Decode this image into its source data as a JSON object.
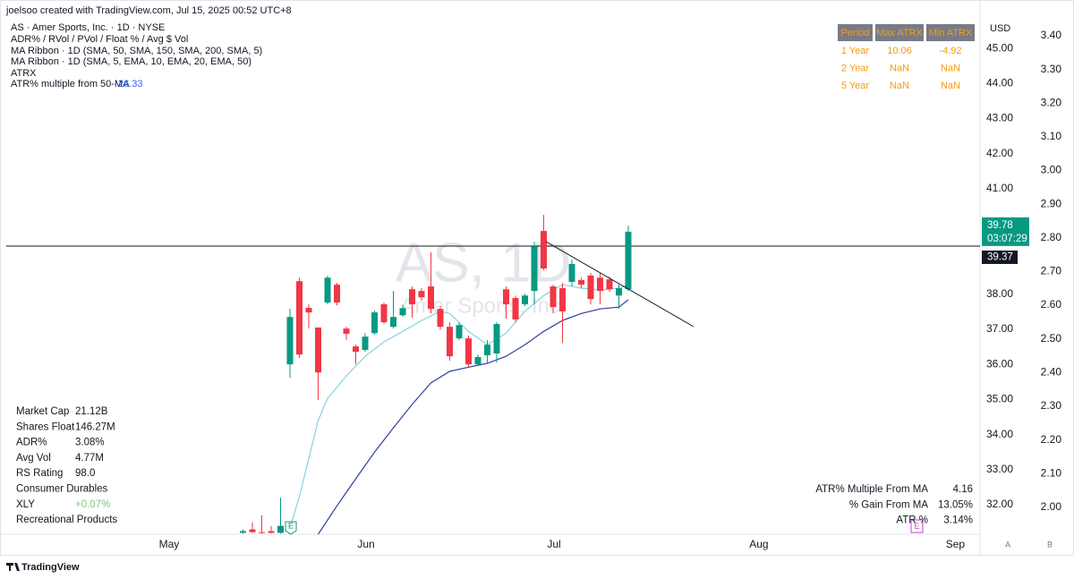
{
  "header": {
    "author": "joelsoo created with TradingView.com, Jul 15, 2025 00:52 UTC+8",
    "lines": [
      "AS · Amer Sports, Inc. · 1D · NYSE",
      "ADR% / RVol / PVol / Float % / Avg $ Vol",
      "MA Ribbon · 1D (SMA, 50, SMA, 150, SMA, 200, SMA, 5)",
      "MA Ribbon · 1D (SMA, 5, EMA, 10, EMA, 20, EMA, 50)",
      "ATRX"
    ],
    "atr_label": "ATR% multiple from 50-MA",
    "atr_value": "26.33"
  },
  "watermark": {
    "symbol": "AS, 1D",
    "name": "Amer Sports, Inc."
  },
  "info_table": {
    "columns": [
      "Period",
      "Max ATRX",
      "Min ATRX"
    ],
    "rows": [
      [
        "1 Year",
        "10.06",
        "-4.92"
      ],
      [
        "2 Year",
        "NaN",
        "NaN"
      ],
      [
        "5 Year",
        "NaN",
        "NaN"
      ]
    ]
  },
  "stats_left": [
    [
      "Market Cap",
      "21.12B"
    ],
    [
      "Shares Float",
      "146.27M"
    ],
    [
      "ADR%",
      "3.08%"
    ],
    [
      "Avg Vol",
      "4.77M"
    ],
    [
      "RS Rating",
      "98.0"
    ],
    [
      "Consumer Durables"
    ],
    [
      "XLY",
      "+0.07%"
    ],
    [
      "Recreational Products"
    ]
  ],
  "stats_right": [
    [
      "ATR% Multiple From MA",
      "4.16"
    ],
    [
      "% Gain From MA",
      "13.05%"
    ],
    [
      "ATR %",
      "3.14%"
    ]
  ],
  "badges": {
    "earnings": "E",
    "event": "E",
    "axis_a": "A",
    "axis_b": "B"
  },
  "footer": "TradingView",
  "chart_data": {
    "type": "candlestick",
    "currency": "USD",
    "x": [
      0,
      1,
      2,
      3,
      4,
      5,
      6,
      7,
      8,
      9,
      10,
      11,
      12,
      13,
      14,
      15,
      16,
      17,
      18,
      19,
      20,
      21,
      22,
      23,
      24,
      25,
      26,
      27,
      28,
      29,
      30,
      31,
      32,
      33,
      34,
      35,
      36,
      37,
      38,
      39,
      40,
      41
    ],
    "open": [
      31.2,
      31.3,
      31.22,
      31.25,
      31.2,
      36.0,
      38.37,
      37.61,
      37.05,
      37.76,
      38.27,
      37.02,
      36.51,
      36.41,
      36.89,
      37.71,
      37.07,
      37.4,
      38.14,
      38.09,
      38.22,
      37.58,
      37.07,
      36.74,
      36.74,
      36.0,
      36.26,
      36.31,
      38.14,
      37.89,
      37.71,
      38.09,
      39.8,
      38.22,
      38.17,
      38.35,
      38.4,
      38.53,
      38.47,
      38.42,
      37.96,
      38.14
    ],
    "high": [
      31.3,
      31.5,
      31.7,
      31.4,
      32.2,
      37.58,
      38.47,
      37.71,
      37.05,
      38.53,
      38.32,
      37.07,
      36.56,
      36.89,
      37.53,
      37.76,
      38.09,
      37.7,
      38.22,
      38.17,
      39.19,
      37.66,
      37.2,
      37.2,
      36.82,
      36.28,
      36.69,
      37.2,
      38.22,
      37.96,
      38.01,
      39.49,
      40.26,
      38.27,
      38.32,
      38.98,
      38.47,
      38.6,
      38.6,
      38.5,
      38.27,
      39.95
    ],
    "low": [
      31.18,
      31.2,
      31.18,
      31.18,
      31.18,
      35.62,
      36.18,
      37.02,
      34.98,
      37.71,
      37.68,
      36.69,
      36.0,
      36.36,
      36.84,
      37.15,
      37.02,
      37.35,
      37.33,
      37.81,
      37.45,
      36.99,
      36.1,
      36.69,
      35.92,
      35.95,
      36.05,
      36.05,
      37.3,
      37.2,
      37.66,
      37.71,
      38.68,
      37.45,
      36.61,
      38.22,
      38.17,
      37.71,
      37.71,
      38.06,
      37.58,
      38.09
    ],
    "close": [
      31.25,
      31.22,
      31.2,
      31.2,
      31.4,
      37.35,
      36.28,
      37.48,
      35.77,
      38.47,
      37.76,
      36.87,
      36.36,
      36.79,
      37.48,
      37.2,
      37.35,
      37.6,
      37.71,
      37.91,
      37.58,
      37.07,
      36.23,
      37.12,
      36.0,
      36.21,
      36.56,
      37.15,
      37.71,
      37.28,
      37.96,
      39.36,
      38.73,
      37.63,
      37.51,
      38.86,
      38.27,
      37.86,
      38.09,
      38.14,
      38.17,
      39.78
    ],
    "up_color": "#089981",
    "down_color": "#f23645",
    "lines": [
      {
        "color": "#86d3e0",
        "x": [
          5,
          6,
          8,
          9,
          11,
          13,
          15,
          17,
          19,
          21,
          22,
          24,
          26,
          28,
          30,
          32,
          34,
          36,
          38,
          40,
          41
        ],
        "values": [
          31.34,
          32.23,
          34.4,
          35.03,
          35.67,
          36.23,
          36.64,
          36.94,
          37.25,
          37.51,
          37.45,
          36.94,
          36.56,
          36.89,
          37.51,
          37.96,
          38.27,
          38.17,
          38.12,
          38.17,
          38.27
        ]
      },
      {
        "color": "#2e40a0",
        "x": [
          8,
          10,
          12,
          14,
          16,
          18,
          20,
          22,
          24,
          26,
          28,
          30,
          32,
          34,
          36,
          38,
          40,
          41
        ],
        "values": [
          31.16,
          31.97,
          32.74,
          33.5,
          34.19,
          34.86,
          35.47,
          35.8,
          35.92,
          36.03,
          36.23,
          36.56,
          36.94,
          37.25,
          37.45,
          37.58,
          37.63,
          37.84
        ]
      }
    ],
    "last_price": {
      "value": 39.78,
      "label": "39.78",
      "countdown": "03:07:29"
    },
    "price_line": {
      "value": 39.37,
      "label": "39.37"
    },
    "xlim": [
      -25.19,
      78.43
    ],
    "xticks": [
      {
        "value": -7.86,
        "label": "May"
      },
      {
        "value": 13.1,
        "label": "Jun"
      },
      {
        "value": 33.1,
        "label": "Jul"
      },
      {
        "value": 54.9,
        "label": "Aug"
      },
      {
        "value": 75.8,
        "label": "Sep"
      }
    ],
    "ylim": [
      31.16,
      45.87
    ],
    "yticks": [
      {
        "value": 32,
        "label": "32.00"
      },
      {
        "value": 33,
        "label": "33.00"
      },
      {
        "value": 34,
        "label": "34.00"
      },
      {
        "value": 35,
        "label": "35.00"
      },
      {
        "value": 36,
        "label": "36.00"
      },
      {
        "value": 37,
        "label": "37.00"
      },
      {
        "value": 38,
        "label": "38.00"
      },
      {
        "value": 39,
        "label": "39.00"
      },
      {
        "value": 40,
        "label": "40.00"
      },
      {
        "value": 41,
        "label": "41.00"
      },
      {
        "value": 42,
        "label": "42.00"
      },
      {
        "value": 43,
        "label": "43.00"
      },
      {
        "value": 44,
        "label": "44.00"
      },
      {
        "value": 45,
        "label": "45.00"
      }
    ],
    "y2lim": [
      1.92,
      3.453
    ],
    "y2ticks": [
      {
        "value": 2.0,
        "label": "2.00"
      },
      {
        "value": 2.1,
        "label": "2.10"
      },
      {
        "value": 2.2,
        "label": "2.20"
      },
      {
        "value": 2.3,
        "label": "2.30"
      },
      {
        "value": 2.4,
        "label": "2.40"
      },
      {
        "value": 2.5,
        "label": "2.50"
      },
      {
        "value": 2.6,
        "label": "2.60"
      },
      {
        "value": 2.7,
        "label": "2.70"
      },
      {
        "value": 2.8,
        "label": "2.80"
      },
      {
        "value": 2.9,
        "label": "2.90"
      },
      {
        "value": 3.0,
        "label": "3.00"
      },
      {
        "value": 3.1,
        "label": "3.10"
      },
      {
        "value": 3.2,
        "label": "3.20"
      },
      {
        "value": 3.3,
        "label": "3.30"
      },
      {
        "value": 3.4,
        "label": "3.40"
      }
    ]
  }
}
